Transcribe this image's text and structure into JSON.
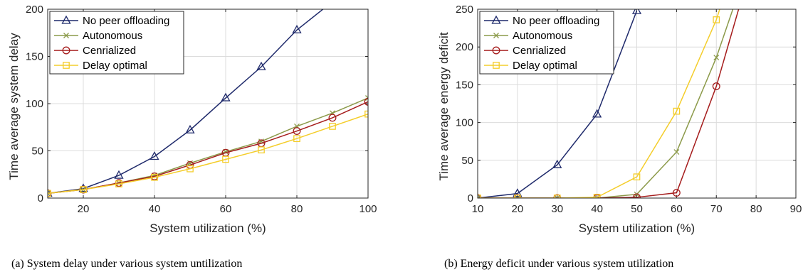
{
  "captions": {
    "a": "(a) System delay under various system untilization",
    "b": "(b) Energy deficit under various system utilization"
  },
  "series_styles": [
    {
      "name": "No peer offloading",
      "color": "#1f2a6b",
      "marker": "triangle"
    },
    {
      "name": "Autonomous",
      "color": "#8c9a4a",
      "marker": "x"
    },
    {
      "name": "Cenrialized",
      "color": "#a51c1c",
      "marker": "circle"
    },
    {
      "name": "Delay optimal",
      "color": "#f4cd2a",
      "marker": "square"
    }
  ],
  "chart_data": [
    {
      "type": "line",
      "xlabel": "System utilization (%)",
      "ylabel": "Time average system delay",
      "xlim": [
        10,
        100
      ],
      "ylim": [
        0,
        200
      ],
      "xticks": [
        20,
        40,
        60,
        80,
        100
      ],
      "yticks": [
        0,
        50,
        100,
        150,
        200
      ],
      "grid": true,
      "legend": "top-left",
      "x": [
        10,
        20,
        30,
        40,
        50,
        60,
        70,
        80,
        90,
        100
      ],
      "series": [
        {
          "name": "No peer offloading",
          "values": [
            5,
            10,
            24,
            44,
            72,
            106,
            139,
            178,
            208,
            null
          ]
        },
        {
          "name": "Autonomous",
          "values": [
            5,
            9,
            16,
            24,
            37,
            49,
            60,
            76,
            90,
            106
          ]
        },
        {
          "name": "Cenrialized",
          "values": [
            5,
            9,
            16,
            23,
            35,
            48,
            58,
            71,
            85,
            102
          ]
        },
        {
          "name": "Delay optimal",
          "values": [
            5,
            9,
            15,
            22,
            31,
            41,
            51,
            63,
            76,
            89
          ]
        }
      ]
    },
    {
      "type": "line",
      "xlabel": "System utilization (%)",
      "ylabel": "Time average energy deficit",
      "xlim": [
        10,
        90
      ],
      "ylim": [
        0,
        250
      ],
      "xticks": [
        10,
        20,
        30,
        40,
        50,
        60,
        70,
        80,
        90
      ],
      "yticks": [
        0,
        50,
        100,
        150,
        200,
        250
      ],
      "grid": true,
      "legend": "top-left",
      "x": [
        10,
        20,
        30,
        40,
        50,
        60,
        70,
        80,
        90
      ],
      "series": [
        {
          "name": "No peer offloading",
          "values": [
            0,
            6,
            44,
            111,
            248,
            null,
            null,
            null,
            null
          ]
        },
        {
          "name": "Autonomous",
          "values": [
            0,
            0,
            0,
            0,
            5,
            61,
            186,
            340,
            null
          ]
        },
        {
          "name": "Cenrialized",
          "values": [
            0,
            0,
            0,
            0,
            1,
            7,
            148,
            330,
            null
          ]
        },
        {
          "name": "Delay optimal",
          "values": [
            0,
            0,
            0,
            1,
            28,
            115,
            236,
            400,
            null
          ]
        }
      ]
    }
  ]
}
